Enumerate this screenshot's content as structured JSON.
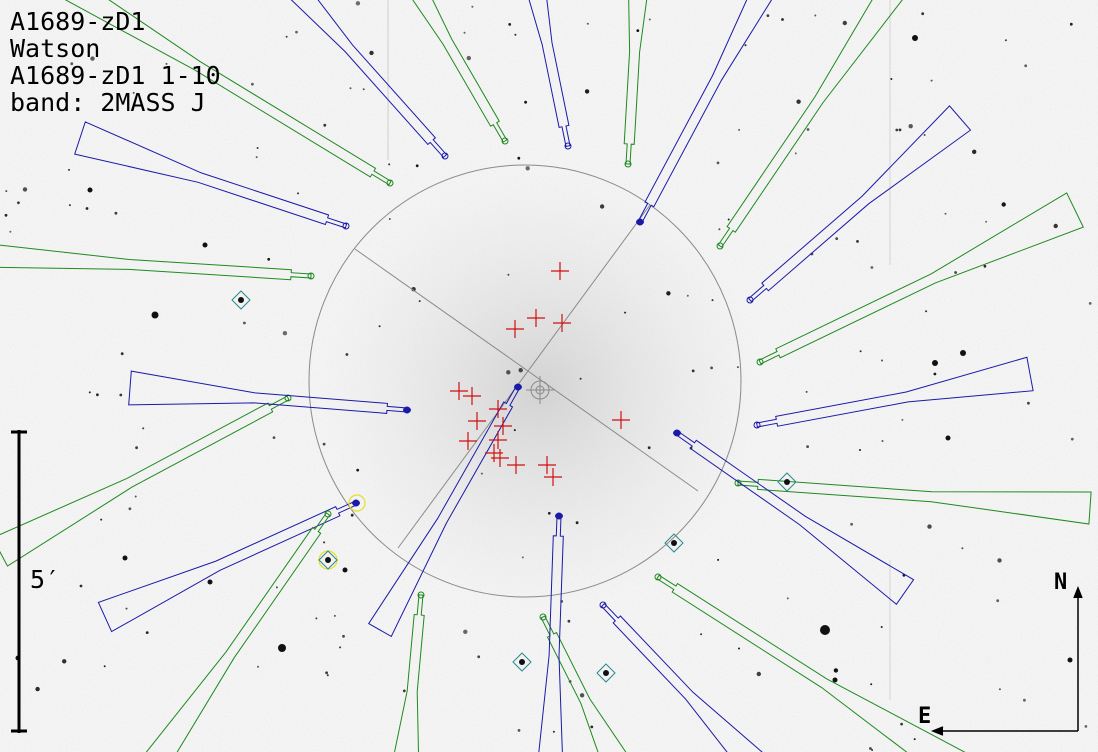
{
  "header": {
    "field_name": "A1689-zD1",
    "observer": "Watson",
    "setup": "A1689-zD1 1-10",
    "band": "band: 2MASS J"
  },
  "scale_bar": {
    "label": "5′"
  },
  "compass": {
    "north": "N",
    "east": "E"
  },
  "colors": {
    "sky_background": "#f4f4f4",
    "blue_fiber": "#1a1aa8",
    "green_fiber": "#1e8a1e",
    "target_cross": "#d01010",
    "field_circle": "#8a8a8a",
    "reference_diamond": "#2a8a8a"
  }
}
